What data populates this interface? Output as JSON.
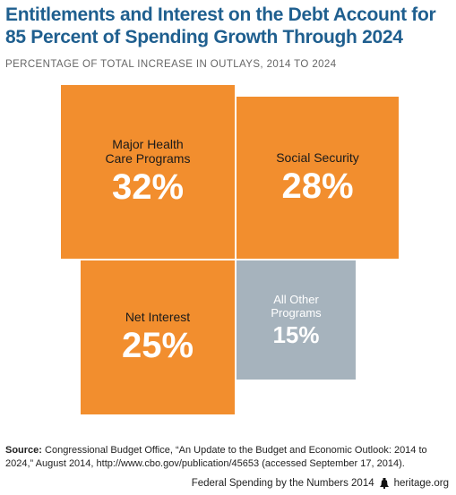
{
  "title": "Entitlements and Interest on the Debt Account for 85 Percent of Spending Growth Through 2024",
  "subtitle": "PERCENTAGE OF TOTAL INCREASE IN OUTLAYS, 2014 TO 2024",
  "chart_data": {
    "type": "treemap",
    "title": "Entitlements and Interest on the Debt Account for 85 Percent of Spending Growth Through 2024",
    "subtitle": "PERCENTAGE OF TOTAL INCREASE IN OUTLAYS, 2014 TO 2024",
    "categories": [
      "Major Health Care Programs",
      "Social Security",
      "Net Interest",
      "All Other Programs"
    ],
    "values": [
      32,
      28,
      25,
      15
    ],
    "value_labels": [
      "32%",
      "28%",
      "25%",
      "15%"
    ],
    "unit": "%",
    "colors": [
      "#f28e2e",
      "#f28e2e",
      "#f28e2e",
      "#a6b3bd"
    ]
  },
  "tiles": [
    {
      "label": "Major Health Care Programs",
      "label_line1": "Major Health",
      "label_line2": "Care Programs",
      "pct": "32%"
    },
    {
      "label": "Social Security",
      "pct": "28%"
    },
    {
      "label": "Net Interest",
      "pct": "25%"
    },
    {
      "label": "All Other Programs",
      "label_line1": "All Other",
      "label_line2": "Programs",
      "pct": "15%"
    }
  ],
  "source": {
    "prefix": "Source:",
    "text": "Congressional Budget Office, “An Update to the Budget and Economic Outlook: 2014 to 2024,” August 2014, http://www.cbo.gov/publication/45653 (accessed September 17, 2014)."
  },
  "footer": {
    "publication": "Federal Spending by the Numbers 2014",
    "site": "heritage.org",
    "logo_icon": "liberty-bell-icon"
  }
}
